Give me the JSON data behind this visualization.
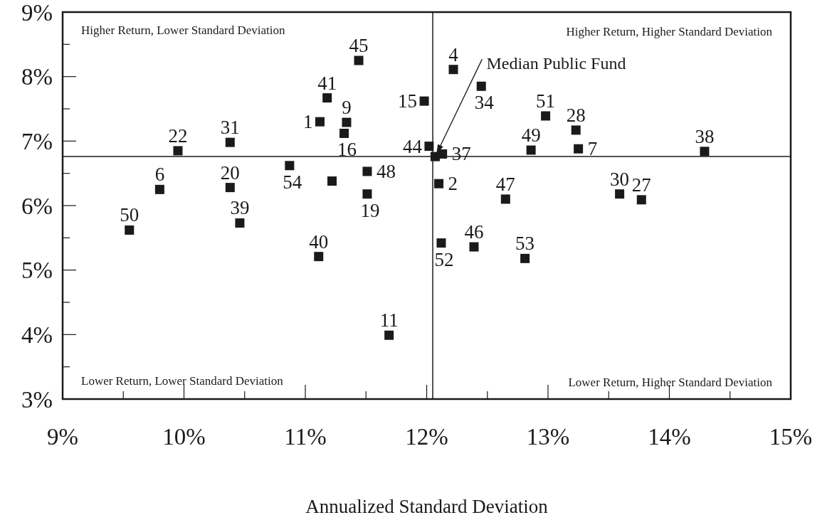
{
  "chart_data": {
    "type": "scatter",
    "xlabel": "Annualized Standard Deviation",
    "xlim": [
      9,
      15
    ],
    "ylim": [
      3,
      9
    ],
    "xticks": [
      {
        "value": 9,
        "label": "9%"
      },
      {
        "value": 9.5,
        "label": null
      },
      {
        "value": 10,
        "label": "10%"
      },
      {
        "value": 10.5,
        "label": null
      },
      {
        "value": 11,
        "label": "11%"
      },
      {
        "value": 11.5,
        "label": null
      },
      {
        "value": 12,
        "label": "12%"
      },
      {
        "value": 12.5,
        "label": null
      },
      {
        "value": 13,
        "label": "13%"
      },
      {
        "value": 13.5,
        "label": null
      },
      {
        "value": 14,
        "label": "14%"
      },
      {
        "value": 14.5,
        "label": null
      },
      {
        "value": 15,
        "label": "15%"
      }
    ],
    "yticks": [
      {
        "value": 3,
        "label": "3%"
      },
      {
        "value": 3.5,
        "label": null
      },
      {
        "value": 4,
        "label": "4%"
      },
      {
        "value": 4.5,
        "label": null
      },
      {
        "value": 5,
        "label": "5%"
      },
      {
        "value": 5.5,
        "label": null
      },
      {
        "value": 6,
        "label": "6%"
      },
      {
        "value": 6.5,
        "label": null
      },
      {
        "value": 7,
        "label": "7%"
      },
      {
        "value": 7.5,
        "label": null
      },
      {
        "value": 8,
        "label": "8%"
      },
      {
        "value": 8.5,
        "label": null
      },
      {
        "value": 9,
        "label": "9%"
      }
    ],
    "grid": false,
    "marker": "square",
    "series": [
      {
        "color": "#1a1a1a",
        "x": [
          11.12,
          12.1,
          12.22,
          9.8,
          13.25,
          11.34,
          11.69,
          11.98,
          11.32,
          11.51,
          10.38,
          9.95,
          13.77,
          13.23,
          13.59,
          10.38,
          12.45,
          12.13,
          14.29,
          10.46,
          11.11,
          11.18,
          12.02,
          11.44,
          12.39,
          12.65,
          11.51,
          12.86,
          9.55,
          12.98,
          12.12,
          12.81,
          10.87,
          12.07,
          11.22
        ],
        "values": [
          7.3,
          6.34,
          8.11,
          6.25,
          6.88,
          7.29,
          3.99,
          7.62,
          7.12,
          6.18,
          6.28,
          6.85,
          6.09,
          7.17,
          6.18,
          6.98,
          7.85,
          6.8,
          6.84,
          5.73,
          5.21,
          7.67,
          6.92,
          8.25,
          5.36,
          6.1,
          6.53,
          6.86,
          5.62,
          7.39,
          5.42,
          5.18,
          6.62,
          6.76,
          6.38
        ]
      }
    ],
    "ref_lines": [
      {
        "axis": "x",
        "value": 12.05,
        "color": "#1a1a1a"
      },
      {
        "axis": "y",
        "value": 6.76,
        "color": "#1a1a1a"
      }
    ],
    "annotations": [
      "Higher Return, Lower Standard Deviation",
      "Higher Return, Higher Standard Deviation",
      "Lower Return, Lower Standard Deviation",
      "Lower Return, Higher Standard Deviation",
      {
        "text": "Median Public Fund",
        "x": 12.07,
        "y": 6.76
      },
      {
        "text": "1",
        "x": 11.12,
        "y": 7.3
      },
      {
        "text": "2",
        "x": 12.1,
        "y": 6.34
      },
      {
        "text": "4",
        "x": 12.22,
        "y": 8.11
      },
      {
        "text": "6",
        "x": 9.8,
        "y": 6.25
      },
      {
        "text": "7",
        "x": 13.25,
        "y": 6.88
      },
      {
        "text": "9",
        "x": 11.34,
        "y": 7.29
      },
      {
        "text": "11",
        "x": 11.69,
        "y": 3.99
      },
      {
        "text": "15",
        "x": 11.98,
        "y": 7.62
      },
      {
        "text": "16",
        "x": 11.32,
        "y": 7.12
      },
      {
        "text": "19",
        "x": 11.51,
        "y": 6.18
      },
      {
        "text": "20",
        "x": 10.38,
        "y": 6.28
      },
      {
        "text": "22",
        "x": 9.95,
        "y": 6.85
      },
      {
        "text": "27",
        "x": 13.77,
        "y": 6.09
      },
      {
        "text": "28",
        "x": 13.23,
        "y": 7.17
      },
      {
        "text": "30",
        "x": 13.59,
        "y": 6.18
      },
      {
        "text": "31",
        "x": 10.38,
        "y": 6.98
      },
      {
        "text": "34",
        "x": 12.45,
        "y": 7.85
      },
      {
        "text": "37",
        "x": 12.13,
        "y": 6.8
      },
      {
        "text": "38",
        "x": 14.29,
        "y": 6.84
      },
      {
        "text": "39",
        "x": 10.46,
        "y": 5.73
      },
      {
        "text": "40",
        "x": 11.11,
        "y": 5.21
      },
      {
        "text": "41",
        "x": 11.18,
        "y": 7.67
      },
      {
        "text": "44",
        "x": 12.02,
        "y": 6.92
      },
      {
        "text": "45",
        "x": 11.44,
        "y": 8.25
      },
      {
        "text": "46",
        "x": 12.39,
        "y": 5.36
      },
      {
        "text": "47",
        "x": 12.65,
        "y": 6.1
      },
      {
        "text": "48",
        "x": 11.51,
        "y": 6.53
      },
      {
        "text": "49",
        "x": 12.86,
        "y": 6.86
      },
      {
        "text": "50",
        "x": 9.55,
        "y": 5.62
      },
      {
        "text": "51",
        "x": 12.98,
        "y": 7.39
      },
      {
        "text": "52",
        "x": 12.12,
        "y": 5.42
      },
      {
        "text": "53",
        "x": 12.81,
        "y": 5.18
      },
      {
        "text": "54",
        "x": 10.87,
        "y": 6.62
      }
    ]
  }
}
